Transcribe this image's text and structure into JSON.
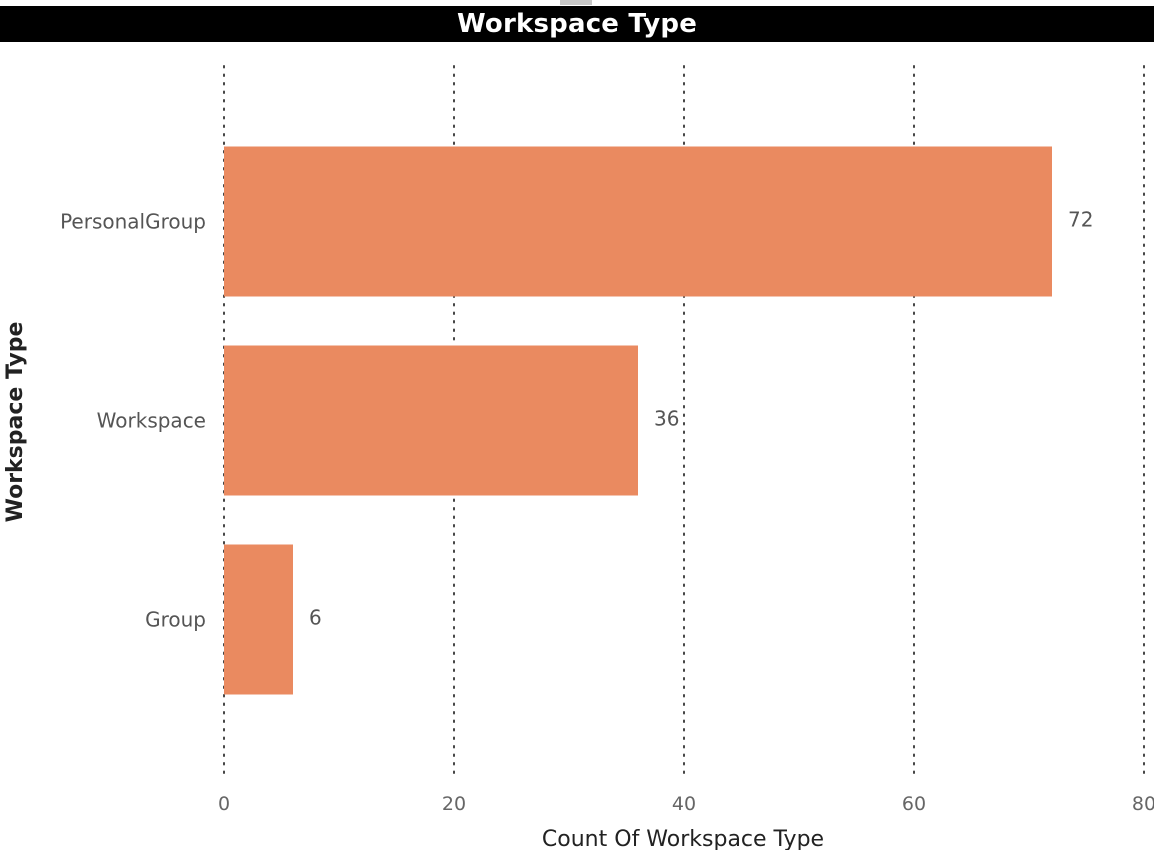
{
  "colors": {
    "bar": "#ea8a60",
    "gridline": "#444444",
    "title_bg": "#000000",
    "title_fg": "#ffffff"
  },
  "chart_data": {
    "type": "bar",
    "orientation": "horizontal",
    "title": "Workspace Type",
    "xlabel": "Count Of Workspace Type",
    "ylabel": "Workspace Type",
    "categories": [
      "PersonalGroup",
      "Workspace",
      "Group"
    ],
    "values": [
      72,
      36,
      6
    ],
    "xlim": [
      0,
      80
    ],
    "xticks": [
      "0",
      "20",
      "40",
      "60",
      "80"
    ],
    "grid": "vertical dotted",
    "data_labels": [
      "72",
      "36",
      "6"
    ]
  }
}
